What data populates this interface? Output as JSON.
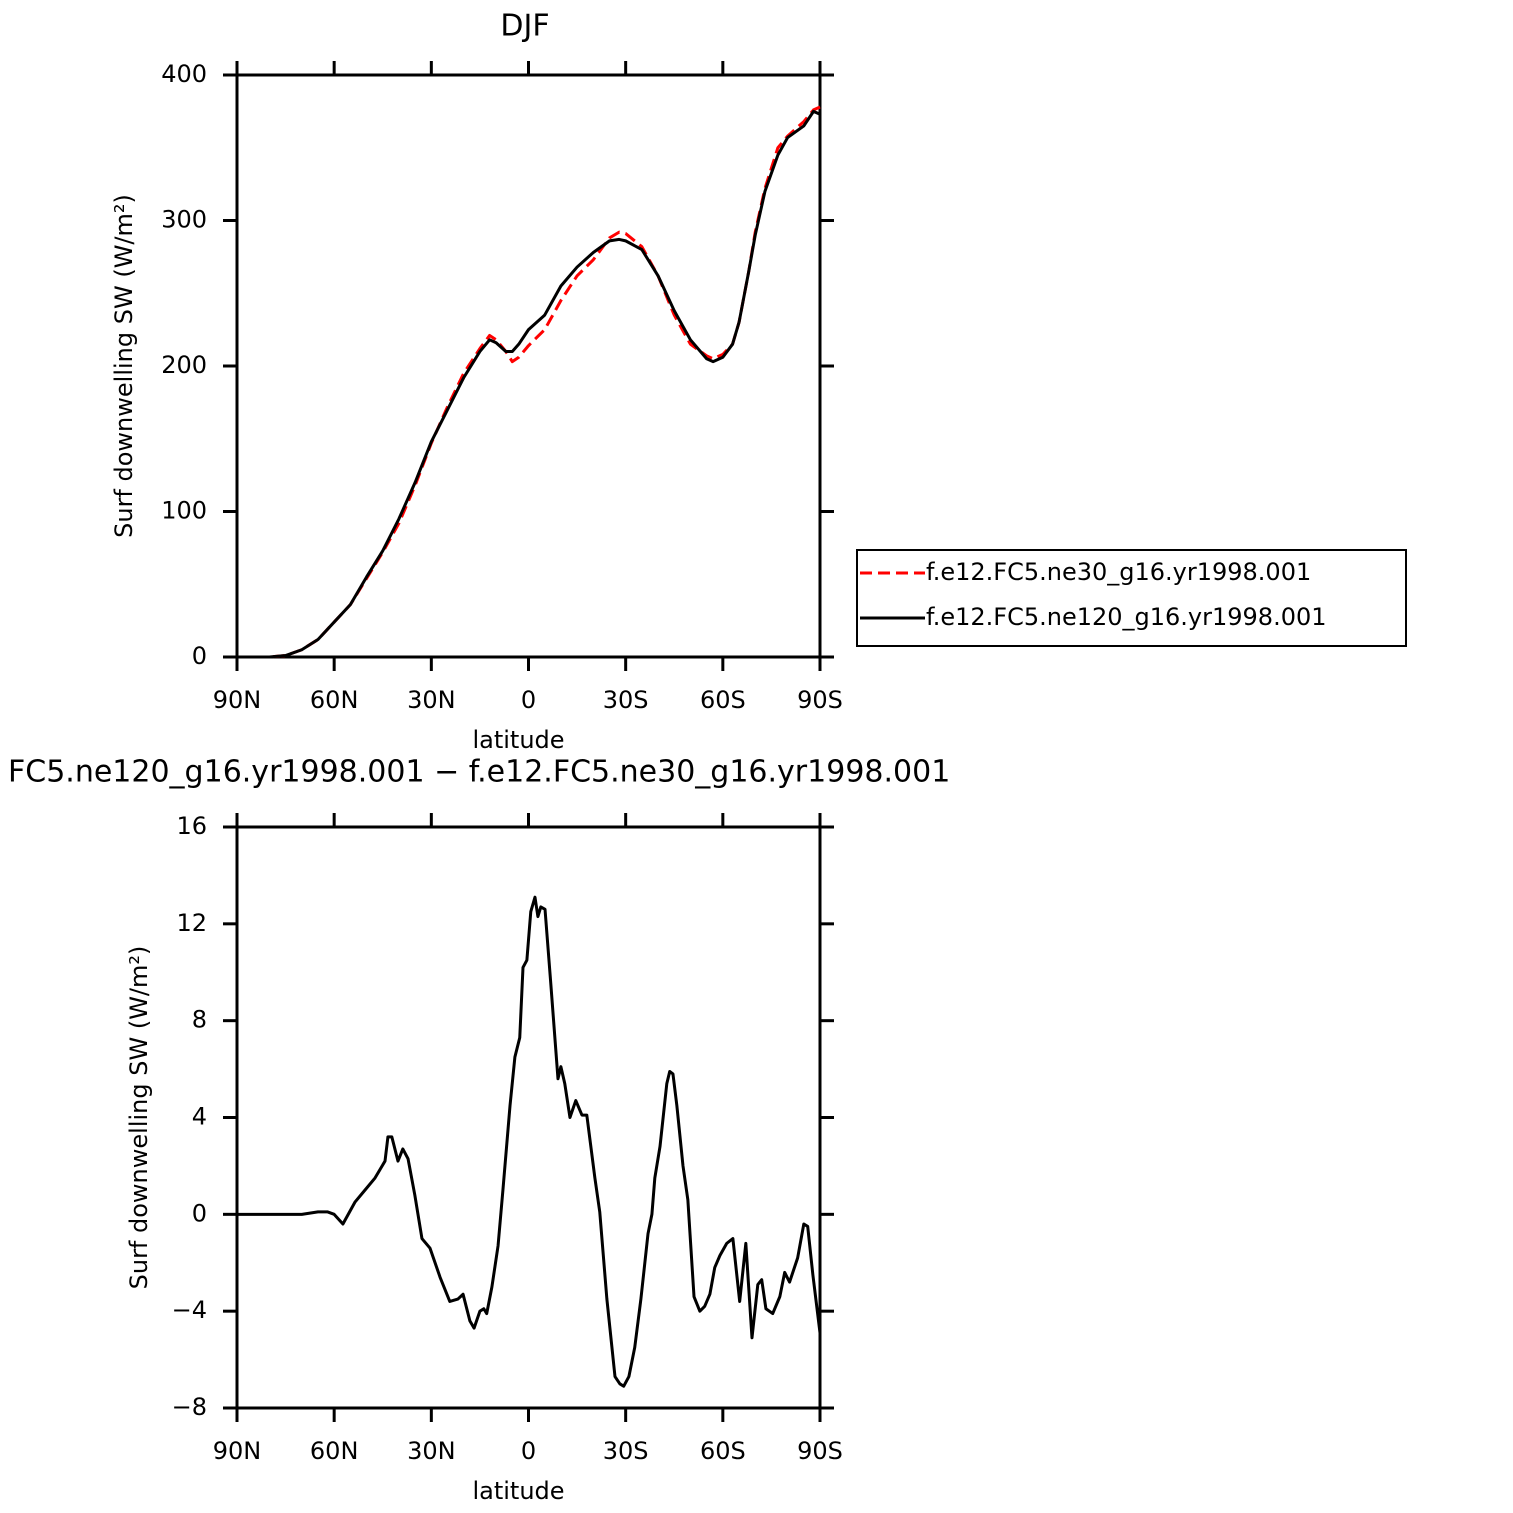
{
  "chart_data": [
    {
      "type": "line",
      "title": "DJF",
      "xlabel": "latitude",
      "ylabel": "Surf downwelling SW (W/m²)",
      "x": [
        90,
        85,
        80,
        75,
        70,
        65,
        60,
        55,
        50,
        45,
        40,
        35,
        30,
        25,
        20,
        15,
        12,
        10,
        7,
        5,
        3,
        0,
        -5,
        -10,
        -15,
        -20,
        -25,
        -28,
        -30,
        -35,
        -40,
        -45,
        -50,
        -55,
        -57,
        -60,
        -63,
        -65,
        -68,
        -70,
        -73,
        -77,
        -80,
        -85,
        -88,
        -90
      ],
      "series": [
        {
          "name": "f.e12.FC5.ne30_g16.yr1998.001",
          "color": "#ff0000",
          "linestyle": "dashed",
          "values": [
            0,
            0,
            0,
            1,
            5,
            12,
            24,
            36,
            54,
            72,
            92,
            118,
            147,
            172,
            195,
            212,
            221,
            218,
            210,
            203,
            206,
            214,
            225,
            245,
            262,
            273,
            288,
            292,
            291,
            282,
            262,
            235,
            215,
            207,
            205,
            208,
            215,
            230,
            265,
            292,
            322,
            350,
            358,
            368,
            376,
            378
          ]
        },
        {
          "name": "f.e12.FC5.ne120_g16.yr1998.001",
          "color": "#000000",
          "linestyle": "solid",
          "values": [
            0,
            0,
            0,
            1,
            5,
            12,
            24,
            36,
            55,
            73,
            95,
            120,
            148,
            170,
            192,
            210,
            218,
            216,
            210,
            210,
            215,
            225,
            235,
            255,
            268,
            278,
            286,
            287,
            286,
            280,
            262,
            238,
            218,
            205,
            203,
            206,
            215,
            230,
            265,
            290,
            320,
            345,
            357,
            365,
            375,
            373
          ]
        }
      ],
      "xlim": [
        90,
        -90
      ],
      "xticks": [
        {
          "value": 90,
          "label": "90N"
        },
        {
          "value": 60,
          "label": "60N"
        },
        {
          "value": 30,
          "label": "30N"
        },
        0,
        {
          "value": -30,
          "label": "30S"
        },
        {
          "value": -60,
          "label": "60S"
        },
        {
          "value": -90,
          "label": "90S"
        }
      ],
      "ylim": [
        0,
        400
      ],
      "yticks": [
        0,
        100,
        200,
        300,
        400
      ],
      "legend": "right"
    },
    {
      "type": "line",
      "title": "FC5.ne120_g16.yr1998.001 − f.e12.FC5.ne30_g16.yr1998.001",
      "xlabel": "latitude",
      "ylabel": "Surf downwelling SW (W/m²)",
      "x": [
        90,
        80,
        70,
        65,
        62,
        60,
        57.3,
        53.6,
        50.5,
        47.4,
        44.3,
        43.4,
        42.2,
        40.3,
        38.8,
        37.2,
        35.1,
        32.9,
        30.4,
        27.3,
        24.3,
        21.8,
        20.2,
        18.1,
        16.8,
        15,
        13.8,
        12.9,
        11.3,
        9.4,
        7.9,
        5.7,
        4.2,
        2.7,
        1.7,
        0.5,
        -0.7,
        -2,
        -2.9,
        -3.8,
        -5.1,
        -6.9,
        -9.1,
        -10,
        -11.2,
        -12.8,
        -14.6,
        -16.5,
        -18,
        -20.5,
        -22,
        -24.2,
        -26.7,
        -28.2,
        -29.4,
        -31,
        -32.8,
        -34.7,
        -36.9,
        -38.1,
        -39,
        -40.6,
        -42.7,
        -43.6,
        -44.6,
        -45.8,
        -47.7,
        -49.2,
        -51.1,
        -52.9,
        -54.4,
        -56,
        -57.5,
        -59.1,
        -61.2,
        -63.1,
        -65.2,
        -67.1,
        -69,
        -70.8,
        -72,
        -73.3,
        -75.4,
        -77.6,
        -79.1,
        -80.6,
        -83.1,
        -85,
        -86.2,
        -87.8,
        -90
      ],
      "color": "#000000",
      "values": [
        0,
        0,
        0,
        0.1,
        0.1,
        0,
        -0.4,
        0.5,
        1.0,
        1.5,
        2.2,
        3.2,
        3.2,
        2.2,
        2.7,
        2.3,
        0.8,
        -1.0,
        -1.4,
        -2.6,
        -3.6,
        -3.5,
        -3.3,
        -4.4,
        -4.7,
        -4.0,
        -3.9,
        -4.1,
        -3.0,
        -1.3,
        1.0,
        4.5,
        6.5,
        7.3,
        10.2,
        10.5,
        12.5,
        13.1,
        12.3,
        12.7,
        12.6,
        9.5,
        5.6,
        6.1,
        5.4,
        4.0,
        4.7,
        4.1,
        4.1,
        1.5,
        0.1,
        -3.5,
        -6.7,
        -7.0,
        -7.1,
        -6.7,
        -5.5,
        -3.5,
        -0.8,
        0,
        1.5,
        2.8,
        5.4,
        5.9,
        5.8,
        4.5,
        2.0,
        0.6,
        -3.4,
        -4.0,
        -3.8,
        -3.3,
        -2.2,
        -1.7,
        -1.2,
        -1.0,
        -3.6,
        -1.2,
        -5.1,
        -2.9,
        -2.7,
        -3.9,
        -4.1,
        -3.4,
        -2.4,
        -2.8,
        -1.8,
        -0.4,
        -0.5,
        -2.5,
        -4.9
      ],
      "xlim": [
        90,
        -90
      ],
      "xticks": [
        {
          "value": 90,
          "label": "90N"
        },
        {
          "value": 60,
          "label": "60N"
        },
        {
          "value": 30,
          "label": "30N"
        },
        0,
        {
          "value": -30,
          "label": "30S"
        },
        {
          "value": -60,
          "label": "60S"
        },
        {
          "value": -90,
          "label": "90S"
        }
      ],
      "ylim": [
        -8,
        16
      ],
      "yticks": [
        {
          "value": -8,
          "label": "−8"
        },
        {
          "value": -4,
          "label": "−4"
        },
        0,
        4,
        8,
        12,
        16
      ]
    }
  ]
}
